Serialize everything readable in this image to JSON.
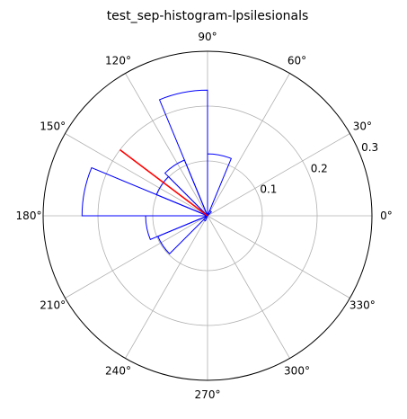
{
  "chart_data": {
    "type": "polar-histogram",
    "title": "test_sep-histogram-lpsilesionals",
    "angle_unit": "degrees",
    "angular_ticks": [
      "0°",
      "30°",
      "60°",
      "90°",
      "120°",
      "150°",
      "180°",
      "210°",
      "240°",
      "270°",
      "300°",
      "330°"
    ],
    "angular_tick_values": [
      0,
      30,
      60,
      90,
      120,
      150,
      180,
      210,
      240,
      270,
      300,
      330
    ],
    "radial_ticks": [
      0.1,
      0.2,
      0.3
    ],
    "radial_tick_labels": [
      "0.1",
      "0.2",
      "0.3"
    ],
    "rlim": [
      0,
      0.3
    ],
    "radial_label_angle_deg": 22.5,
    "grid": true,
    "bin_width_deg": 22.5,
    "bins": [
      {
        "start_deg": 0,
        "end_deg": 22.5,
        "value": 0
      },
      {
        "start_deg": 22.5,
        "end_deg": 45,
        "value": 0
      },
      {
        "start_deg": 45,
        "end_deg": 67.5,
        "value": 0.01
      },
      {
        "start_deg": 67.5,
        "end_deg": 90,
        "value": 0.113
      },
      {
        "start_deg": 90,
        "end_deg": 112.5,
        "value": 0.229
      },
      {
        "start_deg": 112.5,
        "end_deg": 135,
        "value": 0.11
      },
      {
        "start_deg": 135,
        "end_deg": 157.5,
        "value": 0.101
      },
      {
        "start_deg": 157.5,
        "end_deg": 180,
        "value": 0.229
      },
      {
        "start_deg": 180,
        "end_deg": 202.5,
        "value": 0.113
      },
      {
        "start_deg": 202.5,
        "end_deg": 225,
        "value": 0.098
      },
      {
        "start_deg": 225,
        "end_deg": 247.5,
        "value": 0.01
      },
      {
        "start_deg": 247.5,
        "end_deg": 360,
        "value": 0
      }
    ],
    "bar_color": "#0000ff",
    "mean_vector": {
      "angle_deg": 143,
      "length": 0.2,
      "color": "#ff0000"
    },
    "grid_color": "#b0b0b0",
    "frame_color": "#000000"
  }
}
